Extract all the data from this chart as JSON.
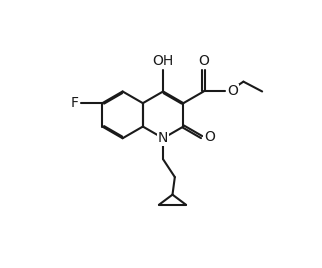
{
  "bg": "#ffffff",
  "lc": "#1a1a1a",
  "lw": 1.5,
  "fs": 10.0,
  "b": 0.4,
  "xlim": [
    0.8,
    7.5
  ],
  "ylim": [
    1.2,
    7.5
  ]
}
